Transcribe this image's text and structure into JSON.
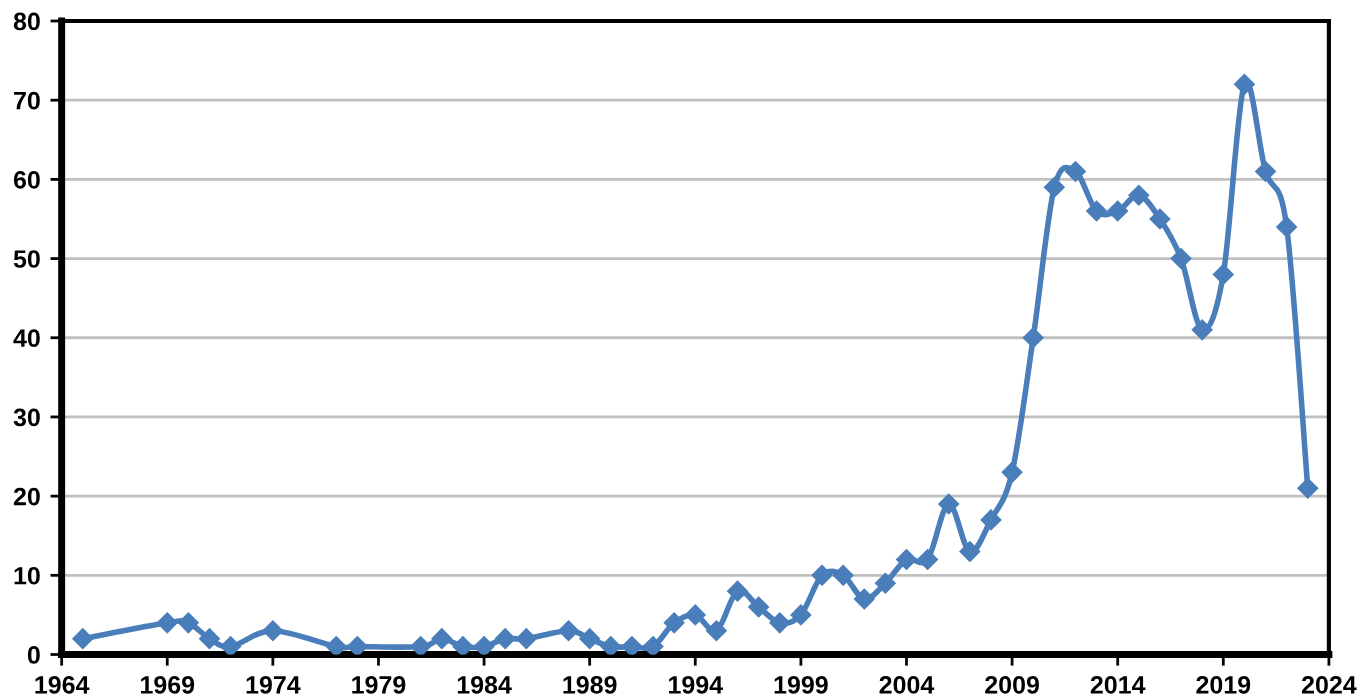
{
  "chart_data": {
    "type": "line",
    "x": [
      1965,
      1969,
      1970,
      1971,
      1972,
      1974,
      1977,
      1978,
      1981,
      1982,
      1983,
      1984,
      1985,
      1986,
      1988,
      1989,
      1990,
      1991,
      1992,
      1993,
      1994,
      1995,
      1996,
      1997,
      1998,
      1999,
      2000,
      2001,
      2002,
      2003,
      2004,
      2005,
      2006,
      2007,
      2008,
      2009,
      2010,
      2011,
      2012,
      2013,
      2014,
      2015,
      2016,
      2017,
      2018,
      2019,
      2020,
      2021,
      2022,
      2023
    ],
    "series": [
      {
        "color": "#4a7ebb",
        "values": [
          2,
          4,
          4,
          2,
          1,
          3,
          1,
          1,
          1,
          2,
          1,
          1,
          2,
          2,
          3,
          2,
          1,
          1,
          1,
          4,
          5,
          3,
          8,
          6,
          4,
          5,
          10,
          10,
          7,
          9,
          12,
          12,
          19,
          13,
          17,
          23,
          40,
          59,
          61,
          56,
          56,
          58,
          55,
          50,
          41,
          48,
          72,
          61,
          54,
          21
        ]
      }
    ],
    "xlim": [
      1964,
      2024
    ],
    "xticks": [
      1964,
      1969,
      1974,
      1979,
      1984,
      1989,
      1994,
      1999,
      2004,
      2009,
      2014,
      2019,
      2024
    ],
    "ylim": [
      0,
      80
    ],
    "yticks": [
      0,
      10,
      20,
      30,
      40,
      50,
      60,
      70,
      80
    ],
    "grid": "y",
    "marker": "diamond",
    "line_style": "solid"
  }
}
